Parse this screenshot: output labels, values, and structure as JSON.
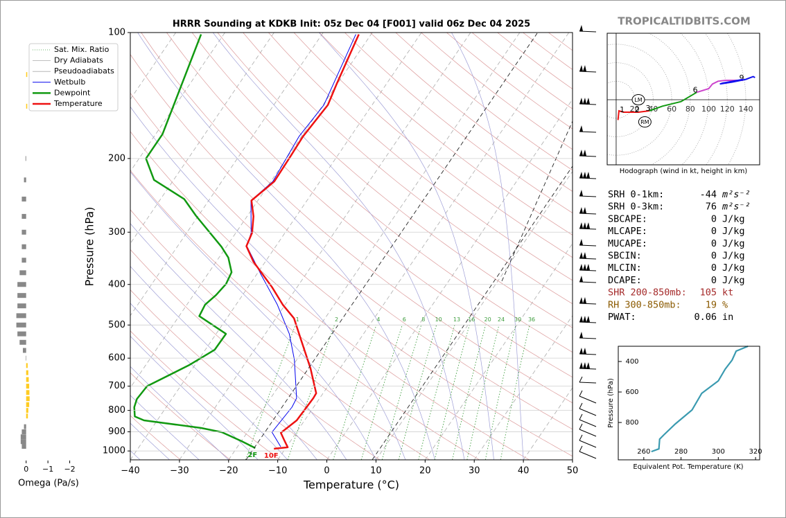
{
  "header": {
    "brand": "TROPICALTIDBITS.COM"
  },
  "chart_data": [
    {
      "type": "skewt",
      "title": "HRRR Sounding at KDKB Init: 05z Dec 04 [F001] valid 06z Dec 04 2025",
      "xlabel": "Temperature (°C)",
      "ylabel": "Pressure (hPa)",
      "yscale": "log",
      "xlim": [
        -40,
        50
      ],
      "ylim": [
        1050,
        100
      ],
      "xticks": [
        {
          "value": -40,
          "label": "−40"
        },
        {
          "value": -30,
          "label": "−30"
        },
        {
          "value": -20,
          "label": "−20"
        },
        {
          "value": -10,
          "label": "−10"
        },
        0,
        10,
        20,
        30,
        40,
        50
      ],
      "yticks": [
        100,
        200,
        300,
        400,
        500,
        600,
        700,
        800,
        900,
        1000
      ],
      "grid": true,
      "reference_lines": [
        {
          "name": "Sat. Mix. Ratio",
          "color": "#3c9c3c",
          "style": "dotted",
          "values": [
            1,
            2,
            4,
            6,
            8,
            10,
            13,
            16,
            20,
            24,
            30,
            36
          ]
        },
        {
          "name": "Dry Adiabats",
          "color": "#aaaaaa",
          "line_color": "#dc9a9a"
        },
        {
          "name": "Pseudoadiabats",
          "color": "#aaaaaa",
          "line_color": "#9d9dd6"
        }
      ],
      "series": [
        {
          "name": "Wetbulb",
          "color": "#0000ee",
          "width": 1,
          "x": [
            -11.2,
            -15.0,
            -14.4,
            -14.7,
            -20.5,
            -25.1,
            -31.6,
            -39.3,
            -45.9,
            -46.9,
            -51.4,
            -49.6,
            -50.5,
            -49.8,
            -53.1
          ],
          "values": [
            977,
            902,
            786,
            748,
            605,
            525,
            447,
            377,
            324,
            301,
            252,
            227,
            177,
            149,
            101
          ]
        },
        {
          "name": "Dewpoint",
          "color": "#119911",
          "width": 2.5,
          "annotation": "2F",
          "x": [
            -16.2,
            -20.0,
            -25.2,
            -30.0,
            -42.7,
            -45.1,
            -46.5,
            -47.1,
            -46.8,
            -41.2,
            -38.1,
            -38.0,
            -45.9,
            -46.3,
            -45.4,
            -44.9,
            -45.4,
            -48.1,
            -51.0,
            -60.5,
            -65.2,
            -74.0,
            -78.6,
            -78.6,
            -84.6
          ],
          "values": [
            984,
            947,
            902,
            881,
            845,
            827,
            786,
            751,
            700,
            624,
            573,
            525,
            476,
            447,
            424,
            399,
            374,
            345,
            325,
            274,
            250,
            225,
            200,
            175,
            101
          ]
        },
        {
          "name": "Temperature",
          "color": "#ee1111",
          "width": 2.5,
          "annotation": "10F",
          "x": [
            -12.3,
            -9.7,
            -11.5,
            -13.1,
            -11.6,
            -11.3,
            -11.4,
            -16.0,
            -22.0,
            -26.3,
            -30.5,
            -35.1,
            -42.4,
            -46.0,
            -46.7,
            -48.7,
            -51.3,
            -49.3,
            -49.5,
            -49.7,
            -49.0,
            -50.1,
            -52.5
          ],
          "values": [
            988,
            980,
            940,
            905,
            845,
            748,
            728,
            635,
            541,
            482,
            447,
            406,
            353,
            324,
            301,
            275,
            252,
            227,
            197,
            177,
            149,
            133,
            101
          ]
        }
      ]
    },
    {
      "type": "bar",
      "xlabel": "Omega (Pa/s)",
      "xlim": [
        0.5,
        -2.3
      ],
      "ylim": [
        1050,
        100
      ],
      "xticks": [
        0,
        {
          "value": -1,
          "label": "−1"
        },
        {
          "value": -2,
          "label": "−2"
        }
      ],
      "positive_color": "#888888",
      "negative_color": "#ffcc22",
      "y": [
        126,
        150,
        200,
        225,
        250,
        275,
        300,
        325,
        350,
        375,
        400,
        425,
        450,
        475,
        500,
        525,
        550,
        575,
        600,
        625,
        650,
        675,
        700,
        725,
        750,
        775,
        800,
        825,
        875,
        900,
        925,
        950,
        975
      ],
      "values": [
        -0.05,
        -0.05,
        0.03,
        0.1,
        0.2,
        0.2,
        0.2,
        0.2,
        0.2,
        0.3,
        0.4,
        0.4,
        0.4,
        0.45,
        0.45,
        0.4,
        0.3,
        0.15,
        0.02,
        -0.07,
        -0.1,
        -0.12,
        -0.14,
        -0.15,
        -0.16,
        -0.14,
        -0.1,
        -0.08,
        0.1,
        0.2,
        0.25,
        0.25,
        0.2
      ]
    },
    {
      "type": "hodograph",
      "title": "Hodograph (wind in kt, height in km)",
      "xlim": [
        -9.7,
        155
      ],
      "ylim": [
        -70.4,
        71.9
      ],
      "xticks": [
        20,
        40,
        60,
        80,
        100,
        120,
        140
      ],
      "series": [
        {
          "color": "#ee1111",
          "x": [
            2,
            3,
            8,
            24,
            36
          ],
          "values": [
            -22,
            -12,
            -13.5,
            -13.5,
            -12
          ],
          "point_labels": [
            null,
            null,
            1,
            2,
            3
          ]
        },
        {
          "color": "#119911",
          "x": [
            36,
            50,
            70,
            87
          ],
          "values": [
            -12,
            -7,
            -2,
            8
          ],
          "point_labels": [
            null,
            null,
            null,
            6
          ]
        },
        {
          "color": "#cc44cc",
          "x": [
            87,
            100,
            104,
            110,
            118,
            137
          ],
          "values": [
            8,
            12,
            17,
            20,
            21,
            21
          ],
          "point_labels": [
            null,
            null,
            null,
            null,
            null,
            9
          ]
        },
        {
          "color": "#1111ee",
          "x": [
            137,
            115,
            112,
            125,
            140,
            148,
            150
          ],
          "values": [
            22,
            18,
            17,
            19,
            22,
            25,
            24
          ]
        }
      ],
      "storm_motion": [
        {
          "name": "LM",
          "x": 24,
          "y": 0
        },
        {
          "name": "RM",
          "x": 31,
          "y": -24
        }
      ]
    },
    {
      "type": "line",
      "xlabel": "Equivalent Pot. Temperature (K)",
      "ylabel": "Pressure (hPa)",
      "xlim": [
        246.3,
        322.2
      ],
      "ylim": [
        1045,
        300
      ],
      "xticks": [
        260,
        280,
        300,
        320
      ],
      "yticks": [
        400,
        600,
        800
      ],
      "series": [
        {
          "color": "#3a9ab0",
          "x": [
            264.1,
            268.1,
            268.5,
            270.7,
            277.0,
            285.9,
            291.1,
            300.0,
            303.7,
            307.4,
            309.6,
            315.9
          ],
          "values": [
            991,
            973,
            909,
            882,
            809,
            718,
            609,
            527,
            450,
            391,
            332,
            300
          ]
        }
      ]
    }
  ],
  "stats": [
    {
      "label": "SRH 0-1km:",
      "value": -44,
      "unit": "m²s⁻²"
    },
    {
      "label": "SRH 0-3km:",
      "value": 76,
      "unit": "m²s⁻²"
    },
    {
      "label": "SBCAPE:",
      "value": 0,
      "unit": "J/kg"
    },
    {
      "label": "MLCAPE:",
      "value": 0,
      "unit": "J/kg"
    },
    {
      "label": "MUCAPE:",
      "value": 0,
      "unit": "J/kg"
    },
    {
      "label": "SBCIN:",
      "value": 0,
      "unit": "J/kg"
    },
    {
      "label": "MLCIN:",
      "value": 0,
      "unit": "J/kg"
    },
    {
      "label": "DCAPE:",
      "value": 0,
      "unit": "J/kg"
    },
    {
      "label": "SHR 200-850mb:",
      "value": 105,
      "unit": "kt",
      "color": "#a52a2a"
    },
    {
      "label": "RH 300-850mb:",
      "value": 19,
      "unit": "%",
      "color": "#8b5a00"
    },
    {
      "label": "PWAT:",
      "value": 0.06,
      "unit": "in"
    }
  ]
}
